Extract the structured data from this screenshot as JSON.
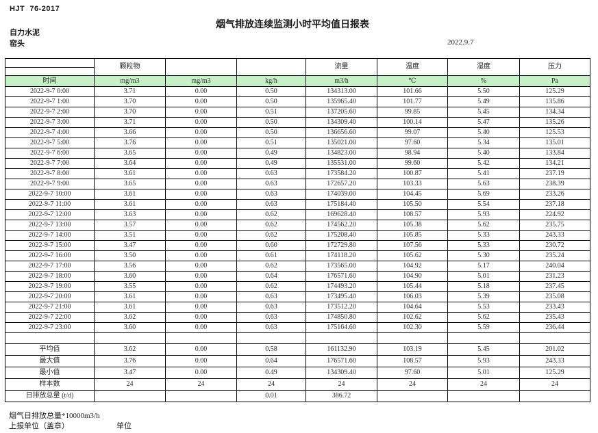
{
  "page": {
    "doc_code": "HJT  76-2017",
    "title": "烟气排放连续监测小时平均值日报表",
    "company": "自力水泥",
    "station": "窑头",
    "date": "2022.9.7",
    "footnote_total": "烟气日排放总量*10000m3/h",
    "footnote_report_unit": "上报单位（盖章）",
    "footnote_unit": "单位"
  },
  "table": {
    "colors": {
      "header_green": "#c6f0c6",
      "border": "#000000"
    },
    "group_headers": [
      "",
      "颗粒物",
      "",
      "",
      "流量",
      "温度",
      "湿度",
      "压力"
    ],
    "unit_headers": [
      "时间",
      "mg/m3",
      "mg/m3",
      "kg/h",
      "m3/h",
      "℃",
      "%",
      "Pa"
    ],
    "rows": [
      [
        "2022-9-7 0:00",
        "3.71",
        "0.00",
        "0.50",
        "134313.00",
        "101.66",
        "5.50",
        "125.29"
      ],
      [
        "2022-9-7 1:00",
        "3.70",
        "0.00",
        "0.50",
        "135965.40",
        "101.77",
        "5.49",
        "135.86"
      ],
      [
        "2022-9-7 2:00",
        "3.70",
        "0.00",
        "0.51",
        "137205.60",
        "99.85",
        "5.45",
        "134.34"
      ],
      [
        "2022-9-7 3:00",
        "3.71",
        "0.00",
        "0.50",
        "134309.40",
        "100.14",
        "5.47",
        "135.26"
      ],
      [
        "2022-9-7 4:00",
        "3.66",
        "0.00",
        "0.50",
        "136656.60",
        "99.07",
        "5.40",
        "125.53"
      ],
      [
        "2022-9-7 5:00",
        "3.76",
        "0.00",
        "0.51",
        "135021.00",
        "97.60",
        "5.34",
        "135.01"
      ],
      [
        "2022-9-7 6:00",
        "3.65",
        "0.00",
        "0.49",
        "134823.00",
        "98.94",
        "5.40",
        "133.84"
      ],
      [
        "2022-9-7 7:00",
        "3.64",
        "0.00",
        "0.49",
        "135531.00",
        "99.60",
        "5.42",
        "134.21"
      ],
      [
        "2022-9-7 8:00",
        "3.61",
        "0.00",
        "0.63",
        "173584.20",
        "100.87",
        "5.41",
        "237.19"
      ],
      [
        "2022-9-7 9:00",
        "3.65",
        "0.00",
        "0.63",
        "172657.20",
        "103.33",
        "5.63",
        "238.39"
      ],
      [
        "2022-9-7 10:00",
        "3.61",
        "0.00",
        "0.63",
        "174039.00",
        "104.45",
        "5.69",
        "233.26"
      ],
      [
        "2022-9-7 11:00",
        "3.61",
        "0.00",
        "0.63",
        "175184.40",
        "105.50",
        "5.54",
        "237.18"
      ],
      [
        "2022-9-7 12:00",
        "3.63",
        "0.00",
        "0.62",
        "169628.40",
        "108.57",
        "5.93",
        "224.92"
      ],
      [
        "2022-9-7 13:00",
        "3.57",
        "0.00",
        "0.62",
        "174562.20",
        "105.38",
        "5.62",
        "235.75"
      ],
      [
        "2022-9-7 14:00",
        "3.51",
        "0.00",
        "0.62",
        "175208.40",
        "105.85",
        "5.33",
        "243.33"
      ],
      [
        "2022-9-7 15:00",
        "3.47",
        "0.00",
        "0.60",
        "172729.80",
        "107.56",
        "5.33",
        "230.72"
      ],
      [
        "2022-9-7 16:00",
        "3.50",
        "0.00",
        "0.61",
        "174118.20",
        "105.62",
        "5.30",
        "235.24"
      ],
      [
        "2022-9-7 17:00",
        "3.56",
        "0.00",
        "0.62",
        "173565.00",
        "104.92",
        "5.17",
        "240.04"
      ],
      [
        "2022-9-7 18:00",
        "3.60",
        "0.00",
        "0.64",
        "176571.60",
        "104.90",
        "5.01",
        "231.23"
      ],
      [
        "2022-9-7 19:00",
        "3.55",
        "0.00",
        "0.62",
        "174493.20",
        "105.44",
        "5.18",
        "237.45"
      ],
      [
        "2022-9-7 20:00",
        "3.61",
        "0.00",
        "0.63",
        "173495.40",
        "106.03",
        "5.39",
        "235.08"
      ],
      [
        "2022-9-7 21:00",
        "3.61",
        "0.00",
        "0.63",
        "173512.20",
        "104.64",
        "5.53",
        "233.43"
      ],
      [
        "2022-9-7 22:00",
        "3.62",
        "0.00",
        "0.63",
        "174850.80",
        "102.62",
        "5.62",
        "235.43"
      ],
      [
        "2022-9-7 23:00",
        "3.60",
        "0.00",
        "0.63",
        "175164.60",
        "102.30",
        "5.59",
        "236.44"
      ]
    ],
    "summary_rows": [
      [
        "平均值",
        "3.62",
        "0.00",
        "0.58",
        "161132.90",
        "103.19",
        "5.45",
        "201.02"
      ],
      [
        "最大值",
        "3.76",
        "0.00",
        "0.64",
        "176571.60",
        "108.57",
        "5.93",
        "243.33"
      ],
      [
        "最小值",
        "3.47",
        "0.00",
        "0.49",
        "134309.40",
        "97.60",
        "5.01",
        "125.29"
      ],
      [
        "样本数",
        "24",
        "24",
        "24",
        "24",
        "24",
        "24",
        "24"
      ],
      [
        "日排放总量 (t/d)",
        "",
        "",
        "0.01",
        "386.72",
        "",
        "",
        ""
      ]
    ]
  }
}
